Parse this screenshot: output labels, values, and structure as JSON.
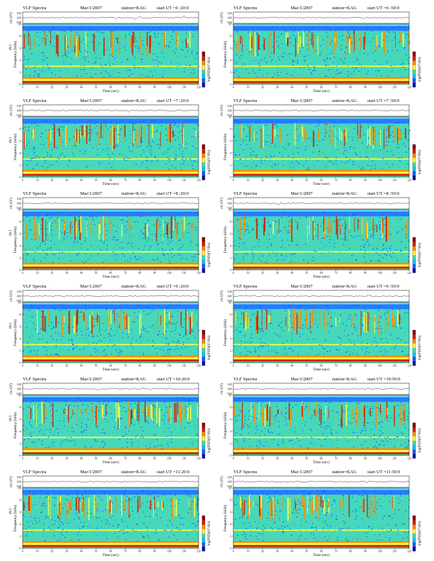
{
  "colors": {
    "colorbar": [
      "#0a14a0",
      "#1e5aff",
      "#00c8ff",
      "#40e0a0",
      "#ffff40",
      "#ff8c00",
      "#d21e00",
      "#8c0000"
    ],
    "background_spectrum": "#48d8b8",
    "upper_band": "#2a7bff",
    "top_band": "#66e6ff"
  },
  "panels": [
    {
      "title": "VLF Spectra",
      "date": "Mar/1/2007",
      "station": "station=KAG",
      "start": "start  UT  =6 :20:0",
      "ch_label": "ch.1(V)",
      "ylabel": "Frequency (kHz)",
      "ylabel_ch": "ch.1",
      "xlabel": "Time (sec)",
      "cblabel": "log(PSD)(V²/Hz)"
    },
    {
      "title": "VLF Spectra",
      "date": "Mar/1/2007",
      "station": "station=KAG",
      "start": "start  UT  =6 :50:0",
      "ch_label": "ch.1(V)",
      "ylabel": "Frequency (kHz)",
      "ylabel_ch": "",
      "xlabel": "Time (sec)",
      "cblabel": "log(PSD)(V²/Hz)"
    },
    {
      "title": "VLF Spectra",
      "date": "Mar/1/2007",
      "station": "station=KAG",
      "start": "start  UT  =7 :20:0",
      "ch_label": "ch.1(V)",
      "ylabel": "Frequency (kHz)",
      "ylabel_ch": "ch.1",
      "xlabel": "Time (sec)",
      "cblabel": "log(PSD)(V²/Hz)"
    },
    {
      "title": "VLF Spectra",
      "date": "Mar/1/2007",
      "station": "station=KAG",
      "start": "start  UT  =7 :50:0",
      "ch_label": "ch.1(V)",
      "ylabel": "Frequency (kHz)",
      "ylabel_ch": "",
      "xlabel": "Time (sec)",
      "cblabel": "log(PSD)(V²/Hz)"
    },
    {
      "title": "VLF Spectra",
      "date": "Mar/1/2007",
      "station": "station=KAG",
      "start": "start  UT  =8 :20:0",
      "ch_label": "ch.1(V)",
      "ylabel": "Frequency (kHz)",
      "ylabel_ch": "ch.1",
      "xlabel": "Time (sec)",
      "cblabel": "log(PSD)(V²/Hz)"
    },
    {
      "title": "VLF Spectra",
      "date": "Mar/1/2007",
      "station": "station=KAG",
      "start": "start  UT  =8 :50:0",
      "ch_label": "ch.1(V)",
      "ylabel": "Frequency (kHz)",
      "ylabel_ch": "",
      "xlabel": "Time (sec)",
      "cblabel": "log(PSD)(V²/Hz)"
    },
    {
      "title": "VLF Spectra",
      "date": "Mar/1/2007",
      "station": "station=KAG",
      "start": "start  UT  =9 :20:0",
      "ch_label": "ch.1(V)",
      "ylabel": "Frequency (kHz)",
      "ylabel_ch": "ch.1",
      "xlabel": "Time (sec)",
      "cblabel": "log(PSD)(V²/Hz)"
    },
    {
      "title": "VLF Spectra",
      "date": "Mar/1/2007",
      "station": "station=KAG",
      "start": "start  UT  =9 :50:0",
      "ch_label": "ch.1(V)",
      "ylabel": "Frequency (kHz)",
      "ylabel_ch": "",
      "xlabel": "Time (sec)",
      "cblabel": "log(PSD)(V²/Hz)"
    },
    {
      "title": "VLF Spectra",
      "date": "Mar/1/2007",
      "station": "station=KAG",
      "start": "start  UT  =10:20:0",
      "ch_label": "ch.1(V)",
      "ylabel": "Frequency (kHz)",
      "ylabel_ch": "ch.1",
      "xlabel": "Time (sec)",
      "cblabel": "log(PSD)(V²/Hz)"
    },
    {
      "title": "VLF Spectra",
      "date": "Mar/1/2007",
      "station": "station=KAG",
      "start": "start  UT  =10:50:0",
      "ch_label": "ch.1(V)",
      "ylabel": "Frequency (kHz)",
      "ylabel_ch": "",
      "xlabel": "Time (sec)",
      "cblabel": "log(PSD)(V²/Hz)"
    },
    {
      "title": "VLF Spectra",
      "date": "Mar/1/2007",
      "station": "station=KAG",
      "start": "start  UT  =11:20:0",
      "ch_label": "ch.1(V)",
      "ylabel": "Frequency (kHz)",
      "ylabel_ch": "ch.1",
      "xlabel": "Time (sec)",
      "cblabel": "log(PSD)(V²/Hz)"
    },
    {
      "title": "VLF Spectra",
      "date": "Mar/1/2007",
      "station": "station=KAG",
      "start": "start  UT  =11:50:0",
      "ch_label": "ch.1(V)",
      "ylabel": "Frequency (kHz)",
      "ylabel_ch": "",
      "xlabel": "Time (sec)",
      "cblabel": "log(PSD)(V²/Hz)"
    }
  ],
  "chart_data": {
    "type": "heatmap",
    "panel_count": 12,
    "layout": "6 rows x 2 columns",
    "x_axis": {
      "label": "Time (sec)",
      "range": [
        0,
        120
      ],
      "ticks": [
        0,
        10,
        20,
        30,
        40,
        50,
        60,
        70,
        80,
        90,
        100,
        110,
        120
      ]
    },
    "y_axis": {
      "label": "Frequency (kHz)",
      "range": [
        0,
        10
      ],
      "ticks": [
        0,
        2,
        4,
        6,
        8,
        10
      ]
    },
    "waveform_axis": {
      "label": "ch.1(V)",
      "range": [
        -0.2,
        0.2
      ],
      "ticks": [
        "0.20",
        "0.00",
        "-0.20"
      ]
    },
    "colorbar": {
      "label": "log(PSD)(V²/Hz)",
      "scale": "log"
    },
    "features": {
      "strong_band_kHz": [
        0.2,
        1.0
      ],
      "lower_continuum_kHz": [
        1.0,
        5.0
      ],
      "sferic_band_kHz": [
        5.0,
        9.0
      ],
      "upper_band_kHz": [
        9.0,
        10.0
      ]
    },
    "grid": false,
    "legend": "colorbar right"
  }
}
